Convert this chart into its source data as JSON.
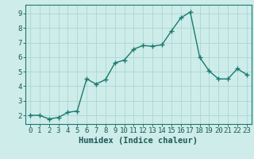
{
  "x": [
    0,
    1,
    2,
    3,
    4,
    5,
    6,
    7,
    8,
    9,
    10,
    11,
    12,
    13,
    14,
    15,
    16,
    17,
    18,
    19,
    20,
    21,
    22,
    23
  ],
  "y": [
    2.0,
    2.0,
    1.75,
    1.85,
    2.2,
    2.3,
    4.5,
    4.15,
    4.45,
    5.6,
    5.8,
    6.55,
    6.8,
    6.75,
    6.85,
    7.8,
    8.7,
    9.1,
    6.0,
    5.05,
    4.5,
    4.5,
    5.2,
    4.8
  ],
  "line_color": "#1a7a6e",
  "marker": "+",
  "marker_size": 4,
  "linewidth": 1.0,
  "bg_color": "#ceecea",
  "grid_color": "#a8d8d4",
  "xlabel": "Humidex (Indice chaleur)",
  "xlabel_fontsize": 7.5,
  "tick_fontsize": 6.5,
  "xlim": [
    -0.5,
    23.5
  ],
  "ylim": [
    1.4,
    9.6
  ],
  "yticks": [
    2,
    3,
    4,
    5,
    6,
    7,
    8,
    9
  ],
  "xticks": [
    0,
    1,
    2,
    3,
    4,
    5,
    6,
    7,
    8,
    9,
    10,
    11,
    12,
    13,
    14,
    15,
    16,
    17,
    18,
    19,
    20,
    21,
    22,
    23
  ],
  "text_color": "#1a5a55",
  "axis_color": "#1a7a6e"
}
